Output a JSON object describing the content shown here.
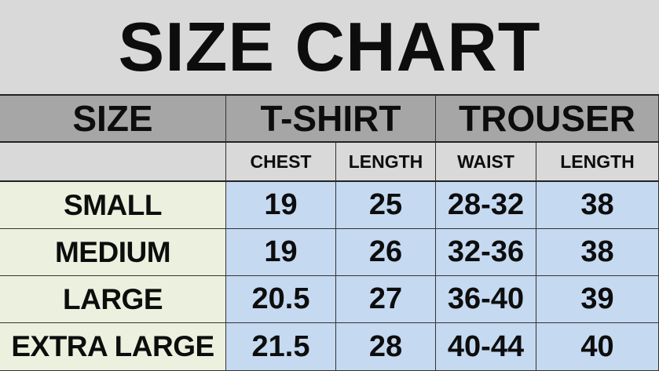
{
  "title": "SIZE CHART",
  "headers": {
    "size": "SIZE",
    "tshirt": "T-SHIRT",
    "trouser": "TROUSER"
  },
  "subheaders": [
    "CHEST",
    "LENGTH",
    "WAIST",
    "LENGTH"
  ],
  "rows": [
    {
      "size": "SMALL",
      "chest": "19",
      "tshirt_length": "25",
      "waist": "28-32",
      "trouser_length": "38"
    },
    {
      "size": "MEDIUM",
      "chest": "19",
      "tshirt_length": "26",
      "waist": "32-36",
      "trouser_length": "38"
    },
    {
      "size": "LARGE",
      "chest": "20.5",
      "tshirt_length": "27",
      "waist": "36-40",
      "trouser_length": "39"
    },
    {
      "size": "EXTRA LARGE",
      "chest": "21.5",
      "tshirt_length": "28",
      "waist": "40-44",
      "trouser_length": "40"
    }
  ],
  "colors": {
    "title_bg": "#d9d9d9",
    "header_bg": "#a6a6a6",
    "size_col_bg": "#ebf1de",
    "data_bg": "#c5d9f1"
  }
}
